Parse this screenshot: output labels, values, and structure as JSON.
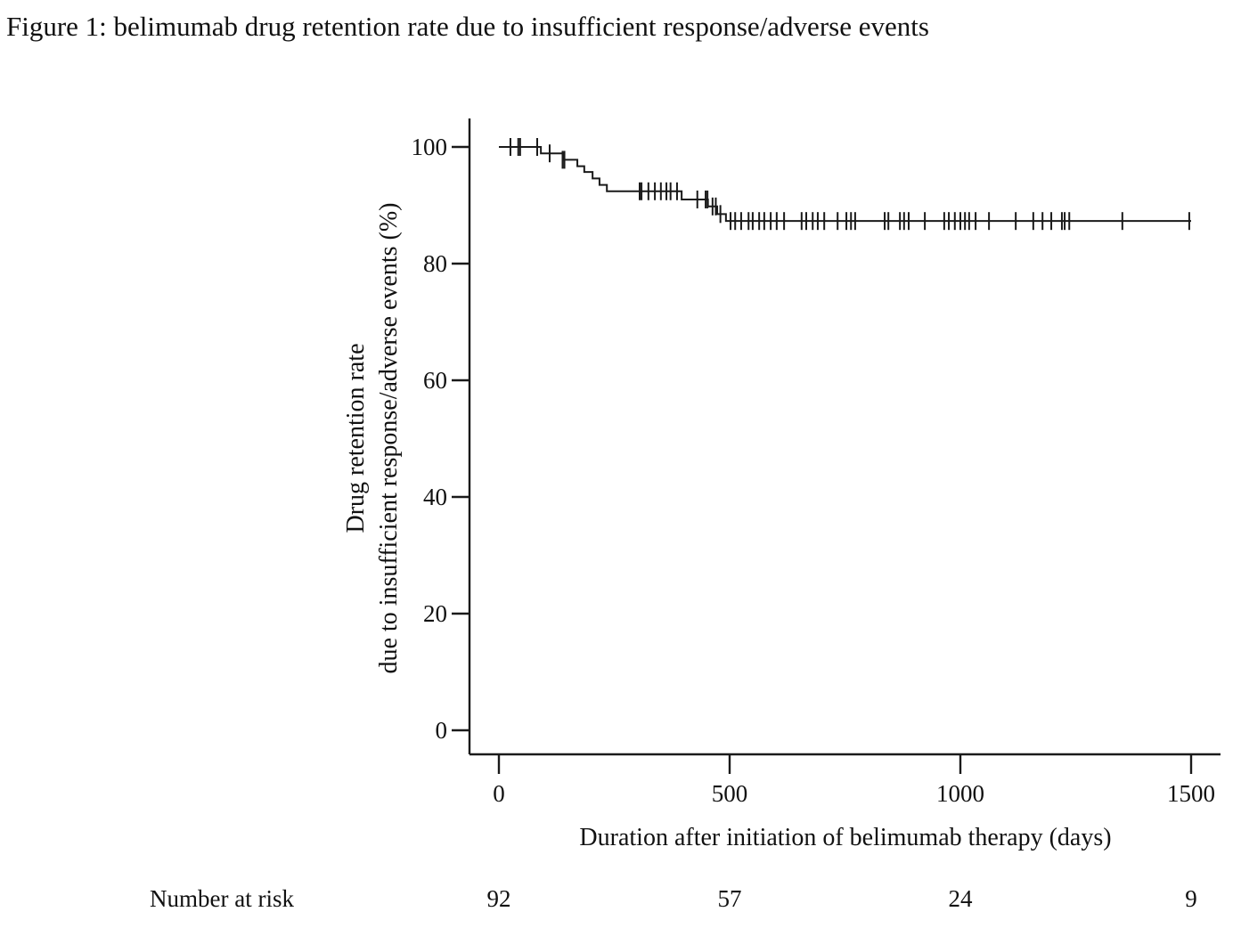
{
  "figure": {
    "title": "Figure 1: belimumab drug retention rate due to insufficient response/adverse events"
  },
  "chart_data": {
    "type": "line",
    "subtype": "kaplan-meier-step-curve",
    "title": "Figure 1: belimumab drug retention rate due to insufficient response/adverse events",
    "xlabel": "Duration after initiation of belimumab therapy (days)",
    "ylabel_lines": [
      "Drug retention rate",
      "due to insufficient response/adverse events (%)"
    ],
    "xlim": [
      0,
      1500
    ],
    "ylim": [
      0,
      100
    ],
    "x_ticks": [
      0,
      500,
      1000,
      1500
    ],
    "y_ticks": [
      0,
      20,
      40,
      60,
      80,
      100
    ],
    "grid": false,
    "legend_position": "none",
    "line_color": "#1a1a1a",
    "series": [
      {
        "name": "belimumab drug retention rate",
        "start": [
          0,
          100
        ],
        "end_x": 1500,
        "step_points": [
          [
            91,
            98.9
          ],
          [
            141,
            97.8
          ],
          [
            170,
            96.7
          ],
          [
            185,
            95.7
          ],
          [
            203,
            94.6
          ],
          [
            218,
            93.5
          ],
          [
            234,
            92.4
          ],
          [
            396,
            91.0
          ],
          [
            453,
            89.8
          ],
          [
            473,
            88.5
          ],
          [
            492,
            87.3
          ]
        ],
        "censor_marks": [
          [
            25,
            100
          ],
          [
            42,
            100
          ],
          [
            46,
            100
          ],
          [
            83,
            100
          ],
          [
            110,
            98.9
          ],
          [
            138,
            97.8
          ],
          [
            142,
            97.8
          ],
          [
            305,
            92.4
          ],
          [
            309,
            92.4
          ],
          [
            324,
            92.4
          ],
          [
            338,
            92.4
          ],
          [
            351,
            92.4
          ],
          [
            363,
            92.4
          ],
          [
            372,
            92.4
          ],
          [
            386,
            92.4
          ],
          [
            430,
            91.0
          ],
          [
            448,
            91.0
          ],
          [
            452,
            91.0
          ],
          [
            463,
            89.8
          ],
          [
            470,
            89.8
          ],
          [
            480,
            88.5
          ],
          [
            502,
            87.3
          ],
          [
            512,
            87.3
          ],
          [
            525,
            87.3
          ],
          [
            541,
            87.3
          ],
          [
            550,
            87.3
          ],
          [
            564,
            87.3
          ],
          [
            575,
            87.3
          ],
          [
            589,
            87.3
          ],
          [
            602,
            87.3
          ],
          [
            618,
            87.3
          ],
          [
            656,
            87.3
          ],
          [
            666,
            87.3
          ],
          [
            680,
            87.3
          ],
          [
            691,
            87.3
          ],
          [
            705,
            87.3
          ],
          [
            734,
            87.3
          ],
          [
            753,
            87.3
          ],
          [
            763,
            87.3
          ],
          [
            772,
            87.3
          ],
          [
            836,
            87.3
          ],
          [
            844,
            87.3
          ],
          [
            869,
            87.3
          ],
          [
            878,
            87.3
          ],
          [
            888,
            87.3
          ],
          [
            923,
            87.3
          ],
          [
            965,
            87.3
          ],
          [
            975,
            87.3
          ],
          [
            988,
            87.3
          ],
          [
            1000,
            87.3
          ],
          [
            1010,
            87.3
          ],
          [
            1019,
            87.3
          ],
          [
            1033,
            87.3
          ],
          [
            1062,
            87.3
          ],
          [
            1120,
            87.3
          ],
          [
            1158,
            87.3
          ],
          [
            1178,
            87.3
          ],
          [
            1197,
            87.3
          ],
          [
            1220,
            87.3
          ],
          [
            1226,
            87.3
          ],
          [
            1236,
            87.3
          ],
          [
            1351,
            87.3
          ],
          [
            1496,
            87.3
          ]
        ]
      }
    ],
    "number_at_risk": {
      "label": "Number at risk",
      "times": [
        0,
        500,
        1000,
        1500
      ],
      "counts": [
        92,
        57,
        24,
        9
      ]
    }
  }
}
